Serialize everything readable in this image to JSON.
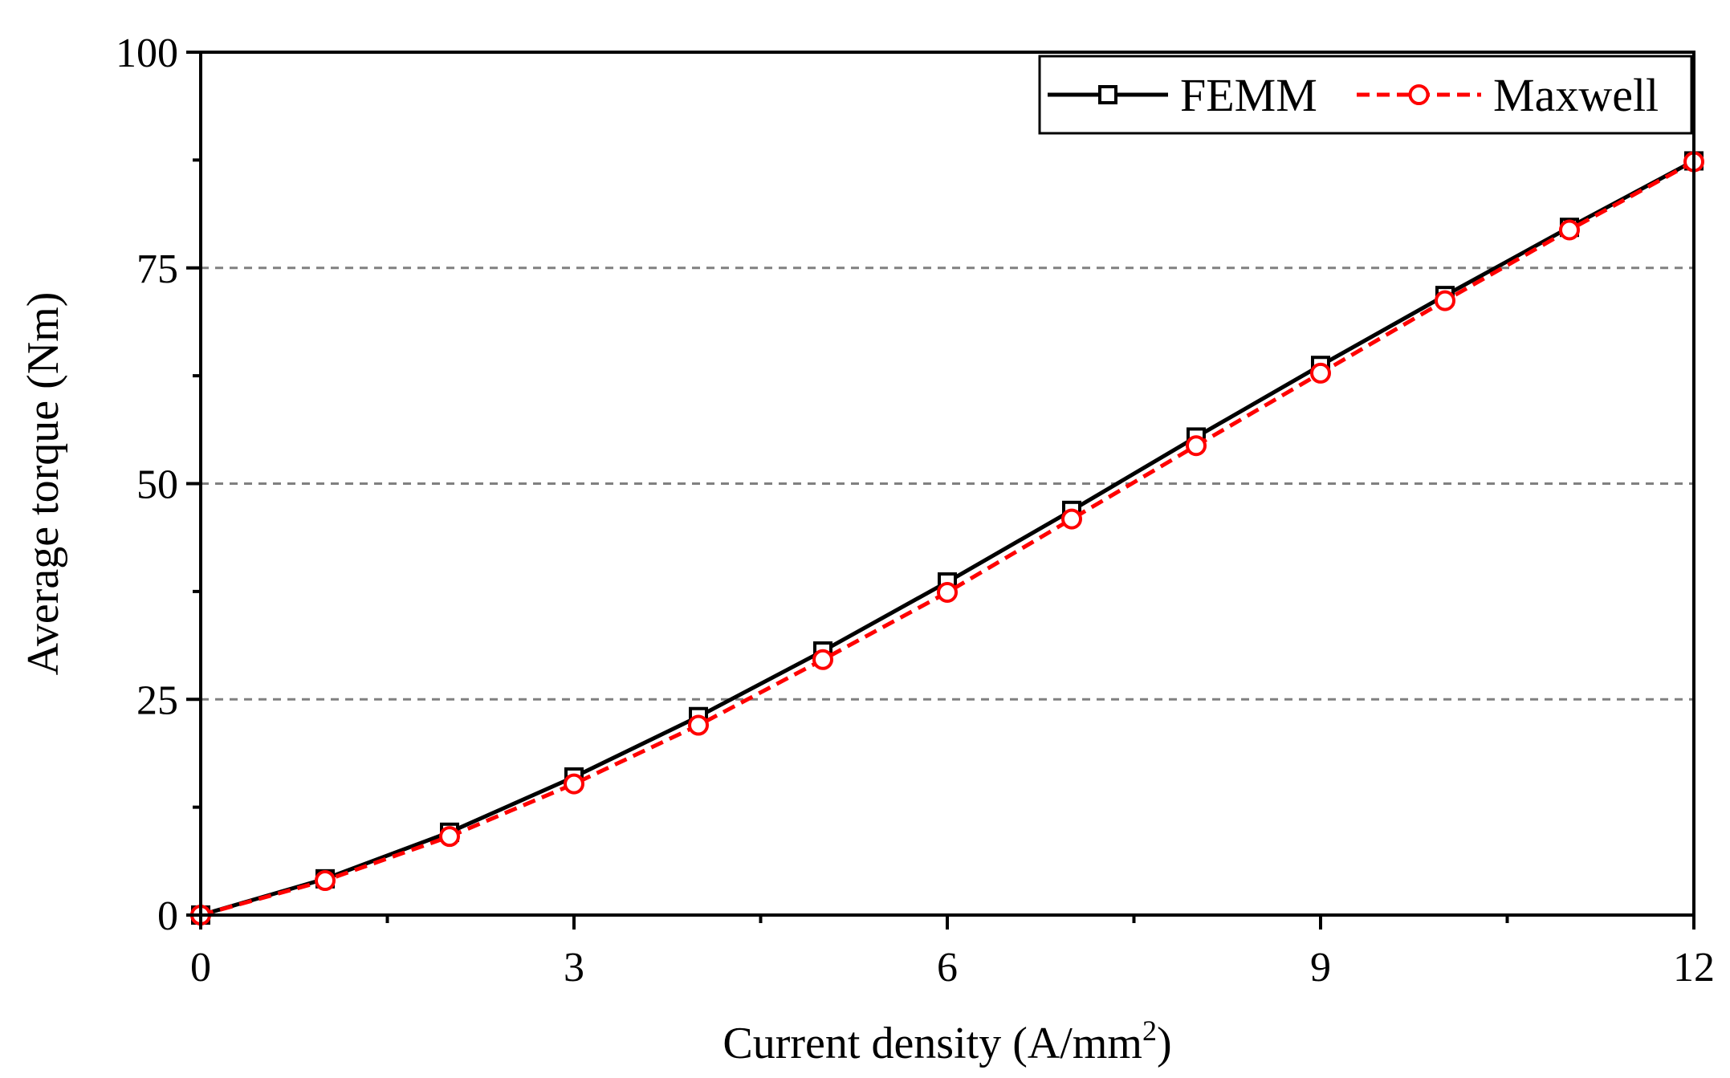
{
  "chart_data": {
    "type": "line",
    "title": "",
    "xlabel": "Current density (A/mm",
    "xlabel_superscript": "2",
    "xlabel_suffix": ")",
    "ylabel": "Average torque (Nm)",
    "xlim": [
      0,
      12
    ],
    "ylim": [
      0,
      100
    ],
    "xticks": [
      0,
      3,
      6,
      9,
      12
    ],
    "xminor": [
      1.5,
      4.5,
      7.5,
      10.5
    ],
    "yticks": [
      0,
      25,
      50,
      75,
      100
    ],
    "yminor": [
      12.5,
      37.5,
      62.5,
      87.5
    ],
    "gridlines_y": [
      25,
      50,
      75
    ],
    "grid": "horizontal dashed",
    "legend_position": "top-right",
    "series": [
      {
        "name": "FEMM",
        "color": "#000000",
        "line_style": "solid",
        "marker": "square",
        "x": [
          0,
          1,
          2,
          3,
          4,
          5,
          6,
          7,
          8,
          9,
          10,
          11,
          12
        ],
        "y": [
          0,
          4.2,
          9.6,
          16.0,
          23.0,
          30.6,
          38.6,
          46.9,
          55.4,
          63.7,
          71.8,
          79.7,
          87.4
        ]
      },
      {
        "name": "Maxwell",
        "color": "#ff0000",
        "line_style": "dashed",
        "marker": "circle",
        "x": [
          0,
          1,
          2,
          3,
          4,
          5,
          6,
          7,
          8,
          9,
          10,
          11,
          12
        ],
        "y": [
          0,
          4.0,
          9.1,
          15.2,
          22.0,
          29.6,
          37.4,
          45.9,
          54.4,
          62.8,
          71.2,
          79.4,
          87.3
        ]
      }
    ]
  }
}
